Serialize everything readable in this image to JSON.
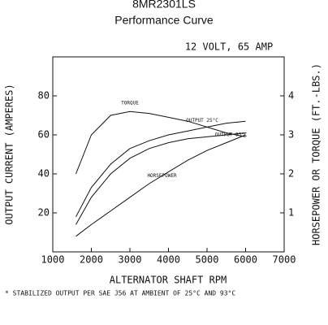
{
  "chart_data": {
    "type": "line",
    "title": "8MR2301LS",
    "subtitle": "Performance Curve",
    "annotation": "12 VOLT, 65 AMP",
    "footnote": "* STABILIZED OUTPUT PER SAE J56 AT AMBIENT OF 25°C AND 93°C",
    "xlabel": "ALTERNATOR SHAFT RPM",
    "ylabel": "OUTPUT CURRENT (AMPERES)",
    "y2label": "HORSEPOWER OR TORQUE (FT.-LBS.)",
    "x": [
      1600,
      2000,
      2500,
      3000,
      3500,
      4000,
      4500,
      5000,
      5500,
      6000
    ],
    "xlim": [
      1000,
      7000
    ],
    "xticks": [
      1000,
      2000,
      3000,
      4000,
      5000,
      6000,
      7000
    ],
    "ylim": [
      0,
      100
    ],
    "yticks": [
      20,
      40,
      60,
      80
    ],
    "y2lim": [
      0,
      5
    ],
    "y2ticks": [
      1,
      2,
      3,
      4
    ],
    "grid": false,
    "series": [
      {
        "name": "OUTPUT 25°C",
        "color": "#111111",
        "values": [
          18,
          33,
          45,
          53,
          57,
          60,
          62,
          64,
          66,
          67
        ]
      },
      {
        "name": "OUTPUT 93°C",
        "color": "#111111",
        "values": [
          14,
          28,
          40,
          48,
          53,
          56,
          58,
          59,
          60,
          61
        ]
      },
      {
        "name": "TORQUE",
        "color": "#111111",
        "axis": "y2",
        "values": [
          2.0,
          3.0,
          3.5,
          3.6,
          3.55,
          3.45,
          3.35,
          3.2,
          3.05,
          2.95
        ]
      },
      {
        "name": "HORSEPOWER",
        "color": "#111111",
        "axis": "y2",
        "values": [
          0.4,
          0.7,
          1.05,
          1.4,
          1.75,
          2.05,
          2.35,
          2.6,
          2.8,
          3.0
        ]
      }
    ]
  }
}
